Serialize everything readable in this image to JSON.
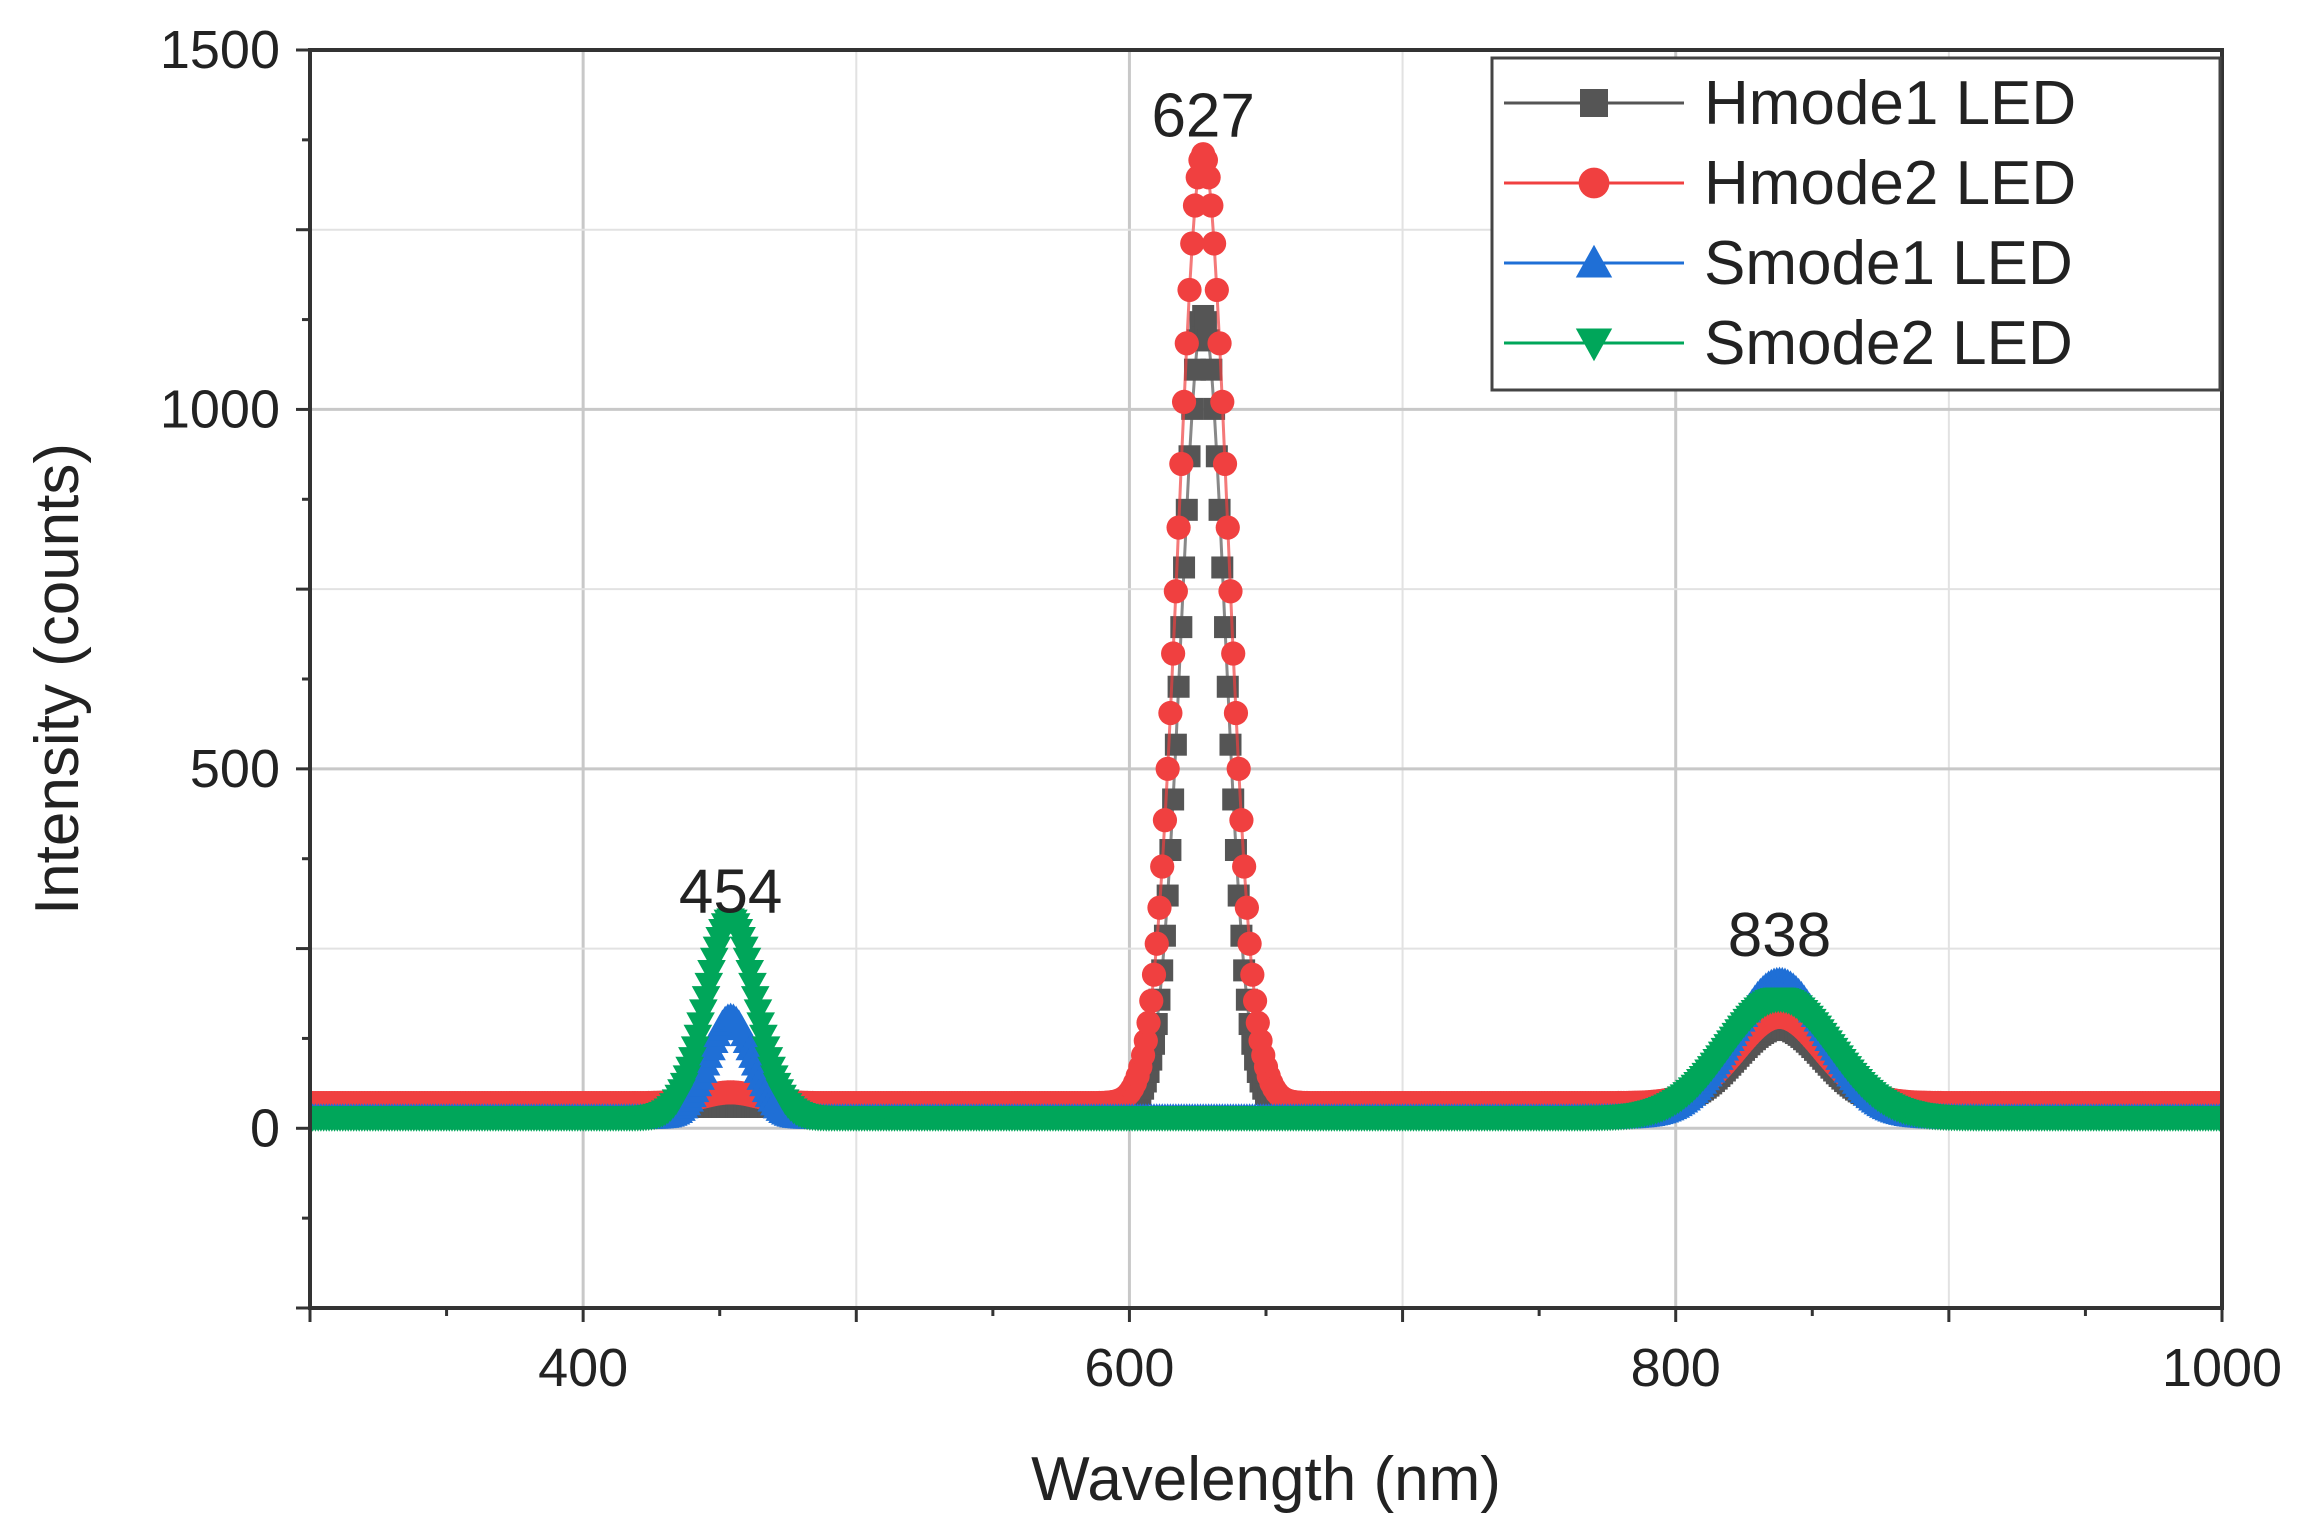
{
  "chart_data": {
    "type": "scatter",
    "title": "",
    "xlabel": "Wavelength (nm)",
    "ylabel": "Intensity (counts)",
    "xlim": [
      300,
      1000
    ],
    "ylim": [
      -250,
      1500
    ],
    "xticks": [
      400,
      600,
      800,
      1000
    ],
    "xtick_labels": [
      "400",
      "600",
      "800",
      "1000"
    ],
    "yticks": [
      0,
      500,
      1000,
      1500
    ],
    "ytick_labels": [
      "0",
      "500",
      "1000",
      "1500"
    ],
    "grid": true,
    "legend_position": "top-right",
    "series": [
      {
        "name": "Hmode1 LED",
        "color": "#555555",
        "marker": "square",
        "baseline": 30,
        "peaks": [
          {
            "center": 627,
            "height": 1100,
            "width": 8
          },
          {
            "center": 838,
            "height": 110,
            "width": 16
          }
        ]
      },
      {
        "name": "Hmode2 LED",
        "color": "#f04040",
        "marker": "circle",
        "baseline": 35,
        "peaks": [
          {
            "center": 627,
            "height": 1320,
            "width": 9
          },
          {
            "center": 454,
            "height": 15,
            "width": 10
          },
          {
            "center": 838,
            "height": 120,
            "width": 16
          }
        ]
      },
      {
        "name": "Smode1 LED",
        "color": "#1f6fd6",
        "marker": "triangle-up",
        "baseline": 15,
        "peaks": [
          {
            "center": 454,
            "height": 140,
            "width": 8
          },
          {
            "center": 838,
            "height": 190,
            "width": 17
          }
        ]
      },
      {
        "name": "Smode2 LED",
        "color": "#00a65a",
        "marker": "triangle-down",
        "baseline": 15,
        "peaks": [
          {
            "center": 454,
            "height": 275,
            "width": 9
          },
          {
            "center": 838,
            "height": 165,
            "width": 19
          }
        ]
      }
    ],
    "annotations": [
      {
        "text": "454",
        "x": 454,
        "y": 300
      },
      {
        "text": "627",
        "x": 627,
        "y": 1380
      },
      {
        "text": "838",
        "x": 838,
        "y": 240
      }
    ]
  }
}
